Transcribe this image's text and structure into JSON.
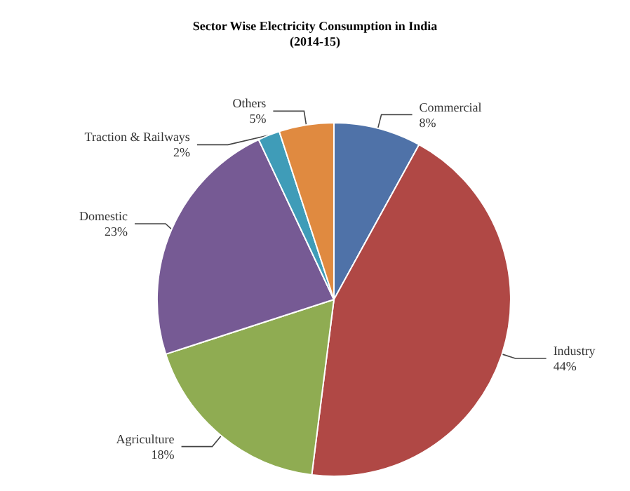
{
  "chart_data": {
    "type": "pie",
    "title": "Sector Wise Electricity Consumption in India\n(2014-15)",
    "categories": [
      "Commercial",
      "Industry",
      "Agriculture",
      "Domestic",
      "Traction & Railways",
      "Others"
    ],
    "values": [
      8,
      44,
      18,
      23,
      2,
      5
    ],
    "colors": [
      "#4f72a8",
      "#b04845",
      "#8fac52",
      "#765a94",
      "#3f9cb8",
      "#e08a40"
    ],
    "value_labels": [
      "8%",
      "44%",
      "18%",
      "23%",
      "2%",
      "5%"
    ],
    "legend": false
  }
}
